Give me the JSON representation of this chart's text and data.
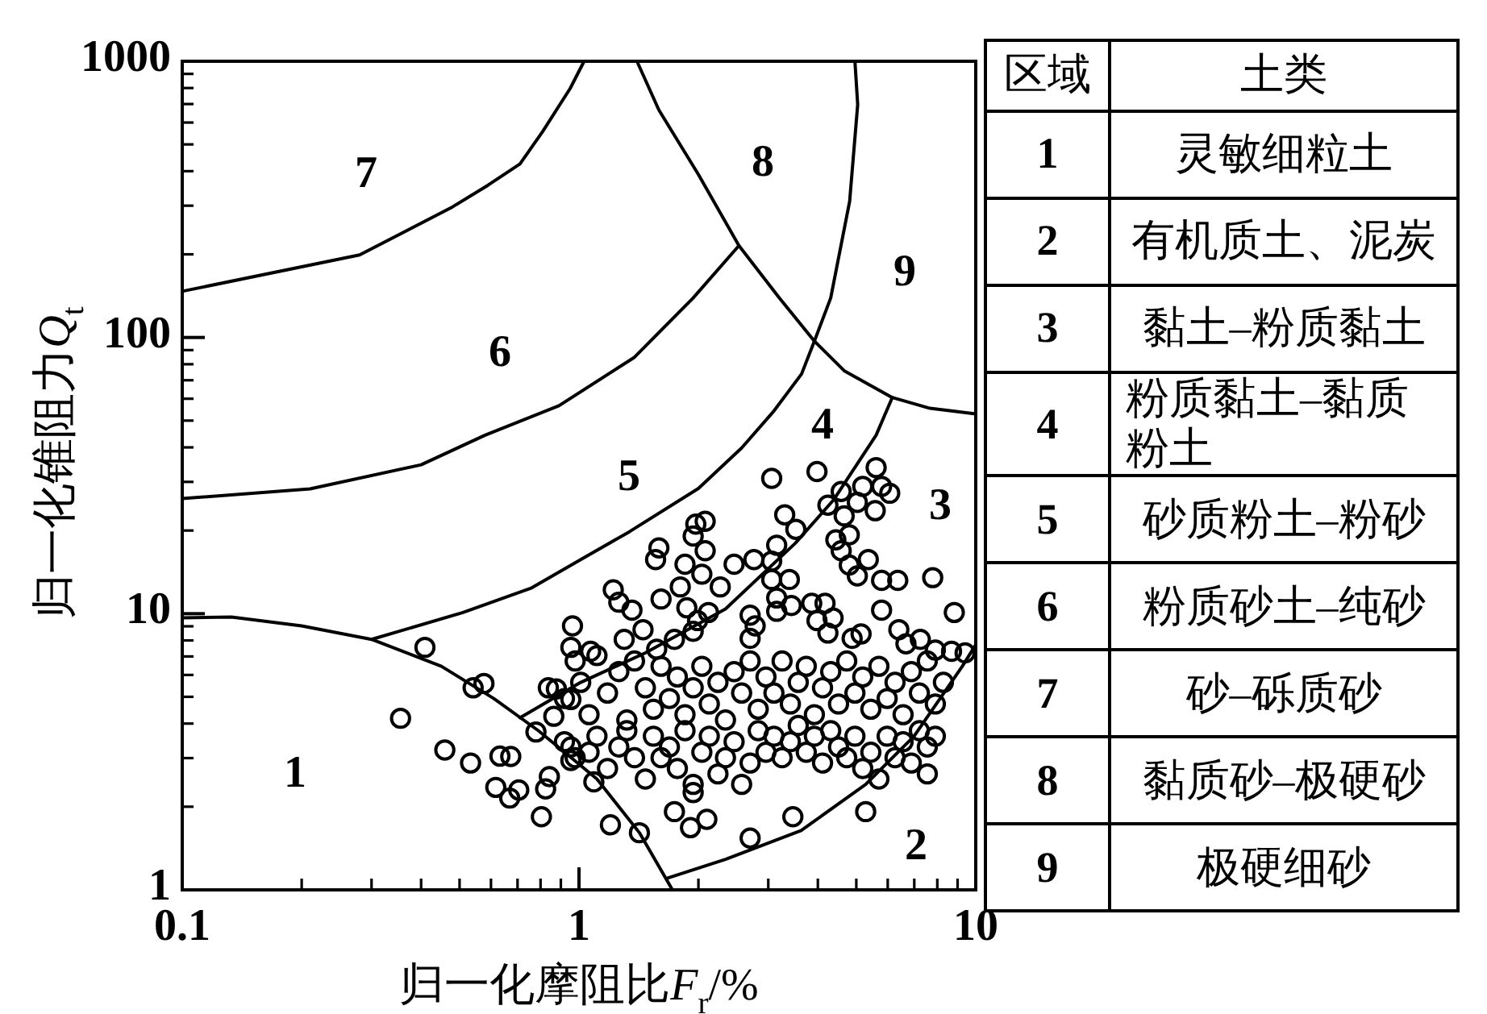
{
  "chart_data": {
    "type": "scatter",
    "xlabel": "归一化摩阻比F$_{r}$/%",
    "ylabel": "归一化锥阻力Q$_{t}$",
    "log": "xy",
    "xlim": [
      0.1,
      10
    ],
    "ylim": [
      1,
      1000
    ],
    "xticks": [
      0.1,
      1,
      10
    ],
    "yticks": [
      1,
      10,
      100,
      1000
    ],
    "annotations": [
      "1",
      "2",
      "3",
      "4",
      "5",
      "6",
      "7",
      "8",
      "9",
      "区域",
      "土类",
      "1",
      "灵敏细粒土",
      "2",
      "有机质土、泥炭",
      "3",
      "黏土–粉质黏土",
      "4",
      "粉质黏土–黏质粉土",
      "5",
      "砂质粉土–粉砂",
      "6",
      "粉质砂土–纯砂",
      "7",
      "砂–砾质砂",
      "8",
      "黏质砂–极硬砂",
      "9",
      "极硬细砂"
    ],
    "series": [
      {
        "type": "scatter",
        "marker": "circle",
        "color": "#000000",
        "x": [
          0.409,
          0.355,
          0.541,
          0.576,
          0.459,
          0.533,
          0.632,
          0.673,
          0.617,
          0.669,
          0.705,
          0.779,
          0.837,
          0.877,
          0.864,
          0.954,
          0.963,
          0.954,
          0.804,
          0.824,
          0.842,
          0.954,
          0.954,
          3.06,
          3.98,
          5.61,
          5.79,
          6.07,
          5.19,
          4.58,
          4.24,
          4.66,
          5.03,
          5.58,
          3.3,
          3.52,
          1.97,
          2.08,
          1.94,
          1.59,
          1.56,
          1.85,
          2.08,
          2.04,
          2.27,
          2.46,
          2.76,
          3.06,
          3.15,
          3.06,
          3.39,
          4.44,
          4.8,
          4.58,
          4.8,
          5.03,
          5.36,
          5.79,
          6.36,
          7.79,
          1.22,
          1.26,
          1.36,
          1.61,
          1.8,
          1.87,
          1.99,
          1.94,
          2.12,
          2.7,
          2.78,
          2.7,
          3.15,
          3.15,
          3.43,
          3.86,
          4.17,
          3.98,
          4.37,
          4.24,
          4.88,
          5.14,
          5.79,
          6.4,
          6.67,
          7.25,
          7.91,
          8.83,
          8.69,
          9.4,
          1.07,
          1.3,
          1.45,
          1.57,
          1.74,
          0.919,
          0.978,
          1.01,
          1.06,
          1.11,
          1.18,
          1.26,
          1.32,
          1.38,
          1.47,
          1.54,
          1.61,
          1.69,
          1.77,
          1.85,
          1.94,
          2.04,
          2.13,
          2.24,
          2.34,
          2.46,
          2.57,
          2.7,
          2.83,
          2.96,
          3.1,
          3.25,
          3.41,
          3.57,
          3.74,
          3.92,
          4.11,
          4.31,
          4.51,
          4.73,
          4.96,
          5.19,
          5.44,
          5.7,
          5.98,
          6.26,
          6.56,
          6.88,
          7.21,
          7.55,
          7.91,
          8.29,
          0.919,
          0.978,
          1.06,
          1.11,
          1.18,
          1.26,
          1.32,
          1.38,
          1.47,
          1.54,
          1.61,
          1.69,
          1.77,
          1.85,
          1.94,
          2.04,
          2.13,
          2.24,
          2.34,
          2.46,
          2.57,
          2.7,
          2.83,
          2.96,
          3.1,
          3.25,
          3.41,
          3.57,
          3.74,
          3.92,
          4.11,
          4.31,
          4.51,
          4.73,
          4.96,
          5.19,
          5.44,
          5.7,
          5.98,
          6.26,
          6.56,
          6.88,
          7.21,
          7.55,
          7.91,
          7.55,
          1.09,
          1.2,
          1.42,
          1.74,
          1.91,
          2.1,
          1.94,
          2.7,
          3.46,
          5.28
        ],
        "values": [
          7.55,
          4.18,
          5.39,
          5.59,
          3.21,
          2.88,
          3.05,
          3.04,
          2.35,
          2.15,
          2.3,
          3.73,
          5.39,
          5.34,
          4.25,
          4.89,
          9.03,
          7.55,
          1.84,
          2.32,
          2.57,
          3.29,
          2.94,
          30.9,
          32.7,
          33.8,
          28.9,
          27.3,
          28.9,
          27.7,
          24.7,
          22.6,
          25.3,
          23.6,
          22.8,
          20.2,
          21.1,
          21.6,
          19.1,
          17.3,
          15.7,
          15.1,
          16.9,
          13.9,
          12.5,
          15.1,
          15.7,
          15.5,
          17.7,
          13.3,
          13.3,
          18.5,
          19.3,
          16.9,
          15.0,
          13.7,
          15.7,
          13.2,
          13.2,
          13.5,
          12.2,
          11.0,
          10.3,
          11.3,
          12.5,
          10.5,
          9.44,
          8.63,
          10.1,
          9.87,
          9.03,
          8.14,
          11.4,
          10.2,
          10.7,
          10.9,
          10.9,
          9.44,
          9.65,
          8.51,
          8.14,
          8.44,
          10.3,
          8.75,
          7.78,
          8.07,
          7.38,
          10.1,
          7.31,
          7.21,
          7.31,
          8.07,
          8.75,
          7.44,
          8.07,
          4.93,
          6.74,
          5.64,
          4.31,
          7.05,
          5.16,
          6.17,
          4.12,
          6.74,
          5.39,
          4.51,
          6.45,
          4.93,
          5.9,
          4.31,
          5.39,
          6.45,
          4.71,
          5.64,
          4.12,
          6.17,
          5.16,
          6.74,
          4.51,
          5.9,
          5.16,
          6.74,
          4.71,
          5.64,
          6.45,
          4.31,
          5.39,
          6.17,
          4.71,
          6.74,
          5.16,
          5.9,
          4.51,
          6.45,
          4.93,
          5.64,
          4.31,
          6.17,
          5.16,
          6.74,
          4.71,
          5.64,
          3.44,
          3.01,
          3.15,
          3.6,
          2.75,
          3.29,
          3.77,
          3.01,
          2.52,
          3.6,
          3.01,
          3.29,
          2.75,
          3.77,
          2.41,
          3.15,
          3.6,
          2.63,
          3.01,
          3.44,
          2.41,
          2.88,
          3.77,
          3.15,
          3.6,
          3.01,
          3.44,
          3.94,
          3.15,
          3.6,
          2.88,
          3.77,
          3.29,
          3.01,
          3.6,
          2.75,
          3.15,
          2.52,
          3.6,
          3.01,
          3.44,
          2.88,
          3.77,
          3.29,
          3.6,
          2.63,
          2.46,
          1.72,
          1.61,
          1.92,
          1.68,
          1.8,
          2.25,
          1.54,
          1.84,
          1.92
        ]
      },
      {
        "type": "line",
        "color": "#000000",
        "x": [
          0.1,
          0.28,
          0.48,
          0.59,
          0.71,
          0.81,
          0.95,
          1.03
        ],
        "values": [
          147,
          199,
          297,
          356,
          425,
          557,
          797,
          1000
        ]
      },
      {
        "type": "line",
        "color": "#000000",
        "x": [
          0.1,
          0.21,
          0.4,
          0.58,
          0.89,
          1.38,
          1.94,
          2.53
        ],
        "values": [
          26.1,
          28.3,
          34.6,
          44.3,
          56.6,
          84.8,
          139,
          215
        ]
      },
      {
        "type": "line",
        "color": "#000000",
        "x": [
          1.4,
          1.59,
          2.0,
          2.53,
          3.2,
          3.92,
          4.66,
          6.16,
          7.67,
          10
        ],
        "values": [
          1000,
          666,
          389,
          215,
          139,
          97,
          75.8,
          60.6,
          55.4,
          52.9
        ]
      },
      {
        "type": "line",
        "color": "#000000",
        "x": [
          4.96,
          5.04,
          4.81,
          4.31,
          3.92,
          3.64,
          3.1,
          2.57,
          2.0,
          1.34,
          1.01,
          0.76,
          0.51,
          0.3
        ],
        "values": [
          1000,
          697,
          311,
          139,
          97,
          73.8,
          54.2,
          39.8,
          28.4,
          19.8,
          15.7,
          12.4,
          10.1,
          8.07
        ]
      },
      {
        "type": "line",
        "color": "#000000",
        "x": [
          6.16,
          5.61,
          4.39,
          3.51,
          2.34,
          1.47,
          1.01,
          0.71
        ],
        "values": [
          60.6,
          44.3,
          25.9,
          18.0,
          10.4,
          7.21,
          5.64,
          4.2
        ]
      },
      {
        "type": "line",
        "color": "#000000",
        "x": [
          0.1,
          0.133,
          0.2,
          0.3,
          0.45,
          0.61,
          0.79,
          0.92,
          1.11,
          1.42,
          1.72
        ],
        "values": [
          9.66,
          9.73,
          9.03,
          8.07,
          6.45,
          4.93,
          3.77,
          3.15,
          2.52,
          1.61,
          1
        ]
      },
      {
        "type": "line",
        "color": "#000000",
        "x": [
          1.66,
          2.34,
          3.63,
          5.28,
          6.99,
          9.25,
          10
        ],
        "values": [
          1.1,
          1.29,
          1.64,
          2.41,
          3.6,
          6.45,
          7.72
        ]
      }
    ]
  }
}
